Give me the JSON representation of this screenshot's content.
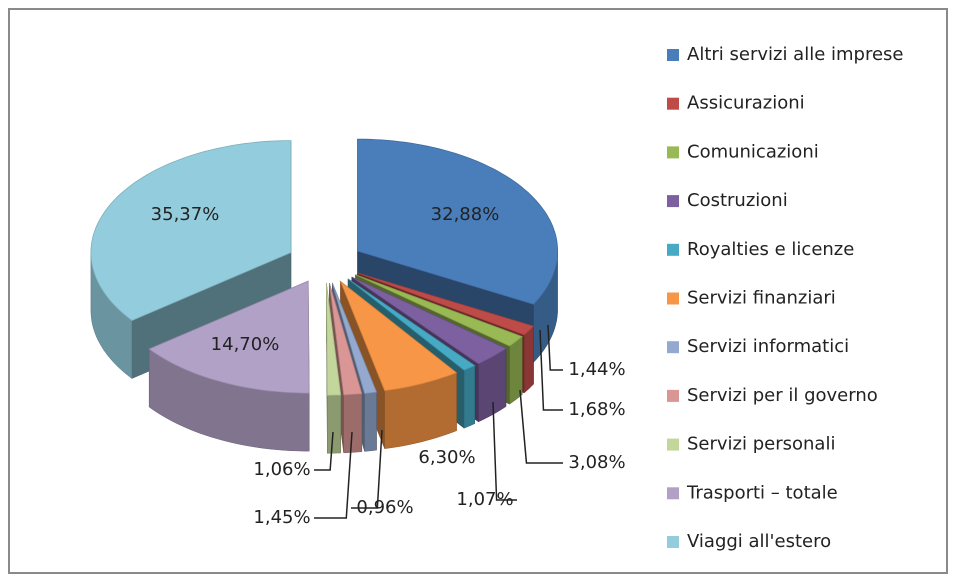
{
  "chart_data": {
    "type": "pie3d",
    "categories": [
      "Altri servizi alle imprese",
      "Assicurazioni",
      "Comunicazioni",
      "Costruzioni",
      "Royalties e licenze",
      "Servizi finanziari",
      "Servizi informatici",
      "Servizi per il governo",
      "Servizi personali",
      "Trasporti – totale",
      "Viaggi all'estero"
    ],
    "values": [
      32.88,
      1.44,
      1.68,
      3.08,
      1.07,
      6.3,
      0.96,
      1.45,
      1.06,
      14.7,
      35.37
    ],
    "value_labels": [
      "32,88%",
      "1,44%",
      "1,68%",
      "3,08%",
      "1,07%",
      "6,30%",
      "0,96%",
      "1,45%",
      "1,06%",
      "14,70%",
      "35,37%"
    ],
    "colors": [
      "#4a7ebb",
      "#be4b48",
      "#98b954",
      "#7d60a0",
      "#46aac5",
      "#f79646",
      "#93a9cf",
      "#d99694",
      "#c3d69b",
      "#b2a1c7",
      "#93cddd"
    ],
    "legend": "right"
  }
}
